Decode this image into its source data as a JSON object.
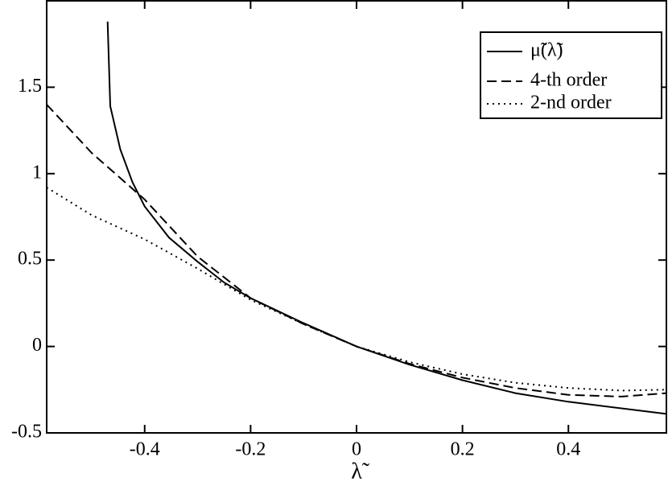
{
  "chart_data": {
    "type": "line",
    "x_label": "λ̃",
    "xlim": [
      -0.585,
      0.585
    ],
    "xticks": [
      -0.4,
      -0.2,
      0,
      0.2,
      0.4
    ],
    "ylim": [
      -0.5,
      2.0
    ],
    "yticks": [
      -0.5,
      0,
      0.5,
      1,
      1.5
    ],
    "legend": "upper right",
    "series": [
      {
        "name": "μ̃(λ̃)",
        "color": "#000000",
        "dash": "solid",
        "x": [
          -0.47,
          -0.465,
          -0.446,
          -0.423,
          -0.4,
          -0.354,
          -0.3,
          -0.25,
          -0.2,
          -0.1,
          0,
          0.1,
          0.2,
          0.3,
          0.4,
          0.585
        ],
        "values": [
          1.88,
          1.39,
          1.14,
          0.95,
          0.81,
          0.63,
          0.49,
          0.37,
          0.28,
          0.135,
          0,
          -0.105,
          -0.195,
          -0.27,
          -0.32,
          -0.39
        ]
      },
      {
        "name": "4-th order",
        "color": "#000000",
        "dash": "dashed",
        "x": [
          -0.585,
          -0.5,
          -0.4,
          -0.3,
          -0.2,
          -0.1,
          0,
          0.1,
          0.2,
          0.3,
          0.4,
          0.5,
          0.585
        ],
        "values": [
          1.4,
          1.12,
          0.85,
          0.52,
          0.28,
          0.13,
          0,
          -0.1,
          -0.18,
          -0.24,
          -0.28,
          -0.29,
          -0.27
        ]
      },
      {
        "name": "2-nd order",
        "color": "#000000",
        "dash": "dotted",
        "x": [
          -0.585,
          -0.5,
          -0.4,
          -0.3,
          -0.2,
          -0.1,
          0,
          0.1,
          0.2,
          0.3,
          0.4,
          0.5,
          0.585
        ],
        "values": [
          0.92,
          0.76,
          0.62,
          0.45,
          0.27,
          0.13,
          0,
          -0.09,
          -0.16,
          -0.21,
          -0.24,
          -0.255,
          -0.25
        ]
      }
    ]
  }
}
